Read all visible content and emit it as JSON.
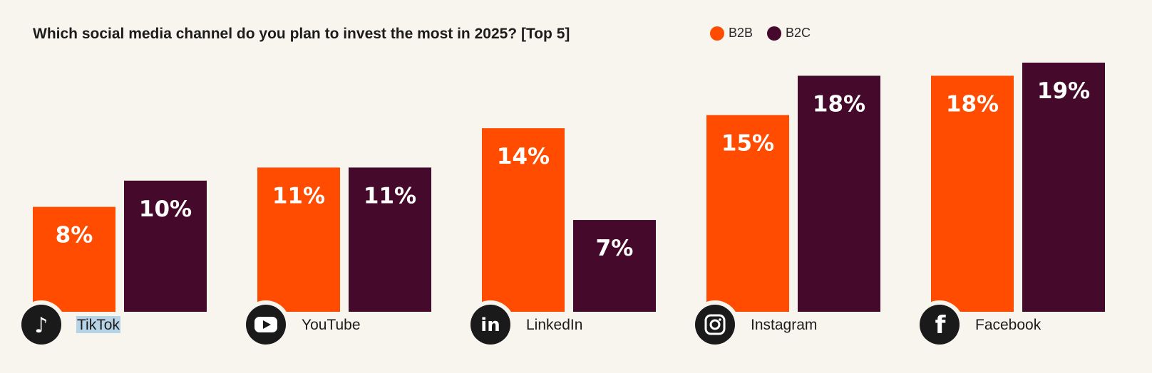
{
  "colors": {
    "b2b": "#ff4c00",
    "b2c": "#450a2b",
    "icon_bg": "#1a1a1a"
  },
  "chart_data": {
    "type": "bar",
    "title": "Which social media channel do you plan to invest the most in 2025? [Top 5]",
    "categories": [
      "TikTok",
      "YouTube",
      "LinkedIn",
      "Instagram",
      "Facebook"
    ],
    "icons": [
      "tiktok-icon",
      "youtube-icon",
      "linkedin-icon",
      "instagram-icon",
      "facebook-icon"
    ],
    "series": [
      {
        "name": "B2B",
        "values": [
          8,
          11,
          14,
          15,
          18
        ],
        "labels": [
          "8%",
          "11%",
          "14%",
          "15%",
          "18%"
        ]
      },
      {
        "name": "B2C",
        "values": [
          10,
          11,
          7,
          18,
          19
        ],
        "labels": [
          "10%",
          "11%",
          "7%",
          "18%",
          "19%"
        ]
      }
    ],
    "ylim": [
      0,
      19
    ],
    "legend": "top-right",
    "xlabel": "",
    "ylabel": ""
  }
}
